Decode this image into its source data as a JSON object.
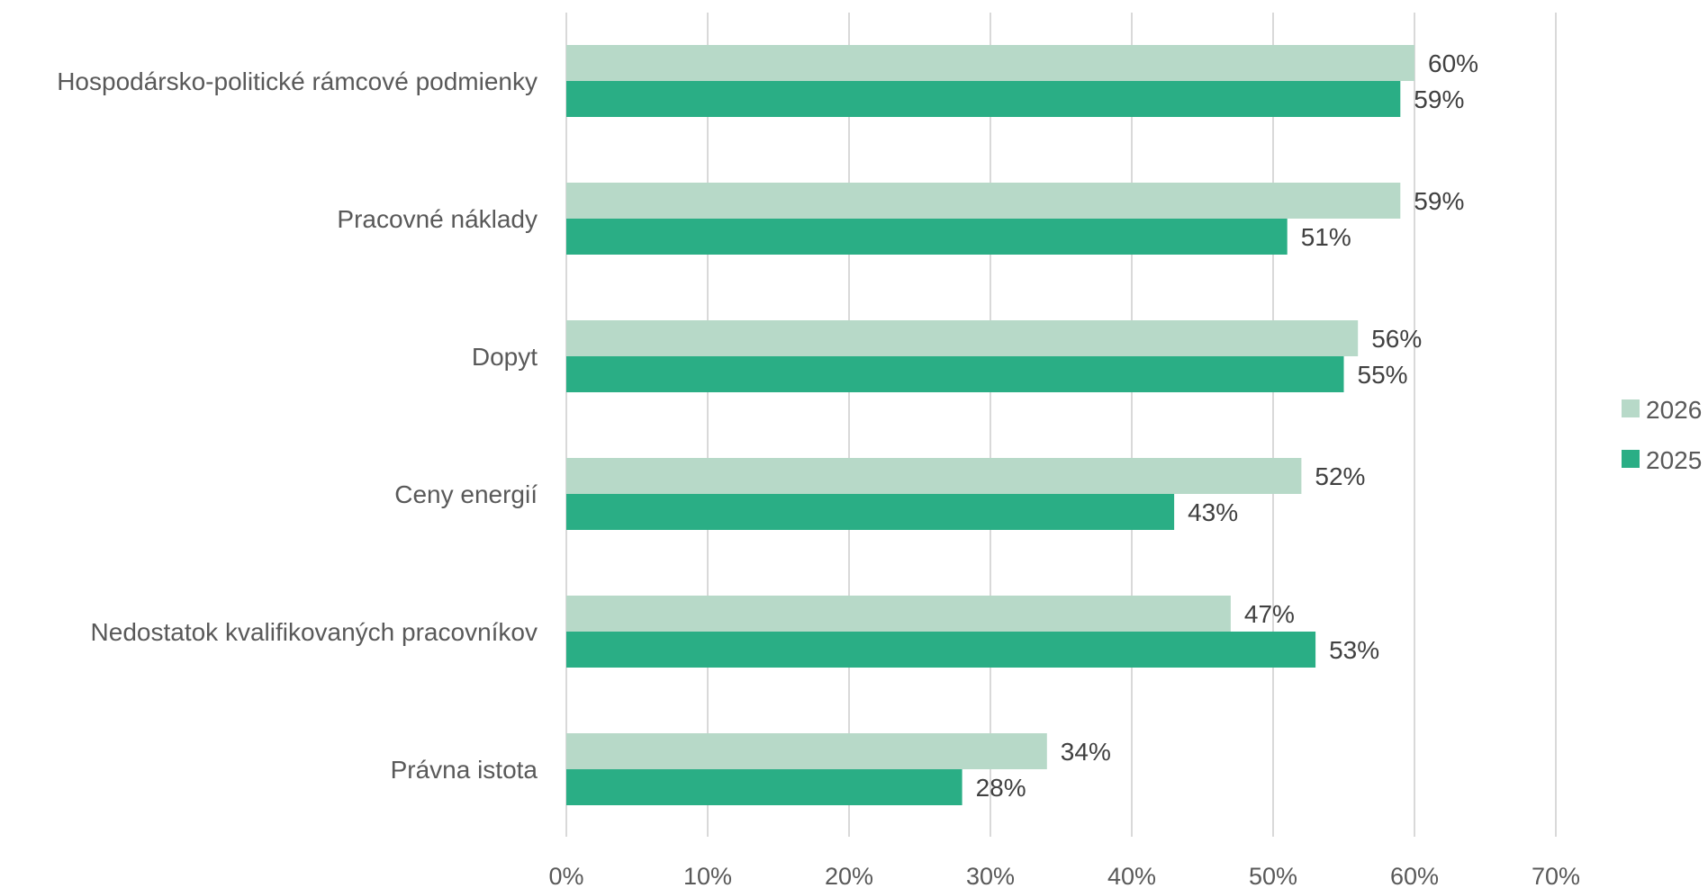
{
  "chart_data": {
    "type": "bar",
    "orientation": "horizontal",
    "title": "",
    "xlabel": "",
    "ylabel": "",
    "categories": [
      "Hospodársko-politické rámcové podmienky",
      "Pracovné náklady",
      "Dopyt",
      "Ceny energií",
      "Nedostatok kvalifikovaných pracovníkov",
      "Právna istota"
    ],
    "series": [
      {
        "name": "2026",
        "color": "#b7d9c8",
        "values": [
          60,
          59,
          56,
          52,
          47,
          34
        ],
        "labels": [
          "60%",
          "59%",
          "56%",
          "52%",
          "47%",
          "34%"
        ]
      },
      {
        "name": "2025",
        "color": "#2aae85",
        "values": [
          59,
          51,
          55,
          43,
          53,
          28
        ],
        "labels": [
          "59%",
          "51%",
          "55%",
          "43%",
          "53%",
          "28%"
        ]
      }
    ],
    "xlim": [
      0,
      70
    ],
    "ticks": [
      0,
      10,
      20,
      30,
      40,
      50,
      60,
      70
    ],
    "tick_labels": [
      "0%",
      "10%",
      "20%",
      "30%",
      "40%",
      "50%",
      "60%",
      "70%"
    ],
    "grid": true,
    "gridline_color": "#d9d9d9",
    "legend_position": "right",
    "legend_order": [
      "2026",
      "2025"
    ]
  }
}
